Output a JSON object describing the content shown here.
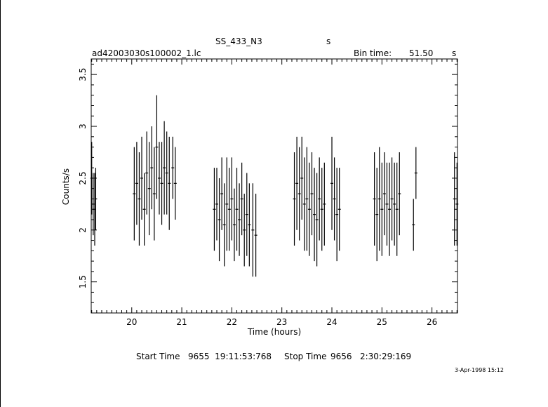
{
  "header": {
    "title": "SS_433_N3",
    "title_suffix": "s",
    "filename": "ad42003030s100002_1.lc",
    "bin_label": "Bin time:",
    "bin_value": "51.50",
    "bin_unit": "s"
  },
  "footer": {
    "start_label": "Start Time",
    "start_value": "9655  19:11:53:768",
    "stop_label": "Stop Time",
    "stop_value": "9656   2:30:29:169",
    "date_stamp": "3-Apr-1998 15:12"
  },
  "chart_data": {
    "type": "scatter",
    "xlabel": "Time (hours)",
    "ylabel": "Counts/s",
    "xlim": [
      19.19,
      26.51
    ],
    "ylim": [
      1.2,
      3.65
    ],
    "x_ticks": [
      20,
      21,
      22,
      23,
      24,
      25,
      26
    ],
    "y_ticks": [
      1.5,
      2,
      2.5,
      3,
      3.5
    ],
    "x_tick_labels": [
      "20",
      "21",
      "22",
      "23",
      "24",
      "25",
      "26"
    ],
    "y_tick_labels": [
      "1.5",
      "2",
      "2.5",
      "3",
      "3.5"
    ],
    "grid": false,
    "series": [
      {
        "error_bars": [
          [
            19.2,
            2.5,
            0.35
          ],
          [
            19.23,
            2.25,
            0.3
          ],
          [
            19.26,
            2.2,
            0.35
          ],
          [
            19.28,
            2.3,
            0.3
          ],
          [
            20.05,
            2.35,
            0.45
          ],
          [
            20.1,
            2.45,
            0.4
          ],
          [
            20.15,
            2.3,
            0.45
          ],
          [
            20.2,
            2.5,
            0.4
          ],
          [
            20.25,
            2.2,
            0.35
          ],
          [
            20.3,
            2.55,
            0.4
          ],
          [
            20.35,
            2.4,
            0.45
          ],
          [
            20.4,
            2.6,
            0.4
          ],
          [
            20.45,
            2.35,
            0.45
          ],
          [
            20.5,
            2.8,
            0.5
          ],
          [
            20.55,
            2.5,
            0.35
          ],
          [
            20.6,
            2.45,
            0.4
          ],
          [
            20.65,
            2.6,
            0.45
          ],
          [
            20.7,
            2.55,
            0.4
          ],
          [
            20.75,
            2.45,
            0.45
          ],
          [
            20.82,
            2.6,
            0.3
          ],
          [
            20.87,
            2.45,
            0.35
          ],
          [
            21.65,
            2.2,
            0.4
          ],
          [
            21.7,
            2.25,
            0.35
          ],
          [
            21.75,
            2.1,
            0.4
          ],
          [
            21.8,
            2.35,
            0.35
          ],
          [
            21.85,
            2.05,
            0.4
          ],
          [
            21.9,
            2.25,
            0.45
          ],
          [
            21.95,
            2.2,
            0.4
          ],
          [
            22.0,
            2.3,
            0.4
          ],
          [
            22.05,
            2.05,
            0.35
          ],
          [
            22.1,
            2.2,
            0.4
          ],
          [
            22.15,
            2.1,
            0.35
          ],
          [
            22.2,
            2.3,
            0.35
          ],
          [
            22.25,
            2.0,
            0.35
          ],
          [
            22.3,
            2.15,
            0.4
          ],
          [
            22.35,
            2.05,
            0.4
          ],
          [
            22.42,
            2.0,
            0.45
          ],
          [
            22.48,
            1.95,
            0.4
          ],
          [
            23.25,
            2.3,
            0.45
          ],
          [
            23.3,
            2.45,
            0.45
          ],
          [
            23.35,
            2.35,
            0.45
          ],
          [
            23.4,
            2.5,
            0.4
          ],
          [
            23.45,
            2.25,
            0.45
          ],
          [
            23.5,
            2.3,
            0.5
          ],
          [
            23.55,
            2.2,
            0.45
          ],
          [
            23.6,
            2.35,
            0.4
          ],
          [
            23.65,
            2.15,
            0.45
          ],
          [
            23.7,
            2.1,
            0.45
          ],
          [
            23.75,
            2.3,
            0.4
          ],
          [
            23.8,
            2.2,
            0.4
          ],
          [
            23.85,
            2.25,
            0.4
          ],
          [
            24.0,
            2.45,
            0.45
          ],
          [
            24.05,
            2.3,
            0.4
          ],
          [
            24.1,
            2.15,
            0.45
          ],
          [
            24.15,
            2.2,
            0.4
          ],
          [
            24.85,
            2.3,
            0.45
          ],
          [
            24.9,
            2.15,
            0.45
          ],
          [
            24.95,
            2.3,
            0.5
          ],
          [
            25.0,
            2.2,
            0.45
          ],
          [
            25.05,
            2.35,
            0.4
          ],
          [
            25.1,
            2.25,
            0.4
          ],
          [
            25.15,
            2.2,
            0.45
          ],
          [
            25.2,
            2.3,
            0.4
          ],
          [
            25.25,
            2.25,
            0.4
          ],
          [
            25.3,
            2.2,
            0.45
          ],
          [
            25.35,
            2.35,
            0.4
          ],
          [
            25.63,
            2.05,
            0.25
          ],
          [
            25.68,
            2.55,
            0.25
          ],
          [
            26.45,
            2.3,
            0.45
          ],
          [
            26.5,
            2.25,
            0.4
          ]
        ]
      }
    ]
  }
}
